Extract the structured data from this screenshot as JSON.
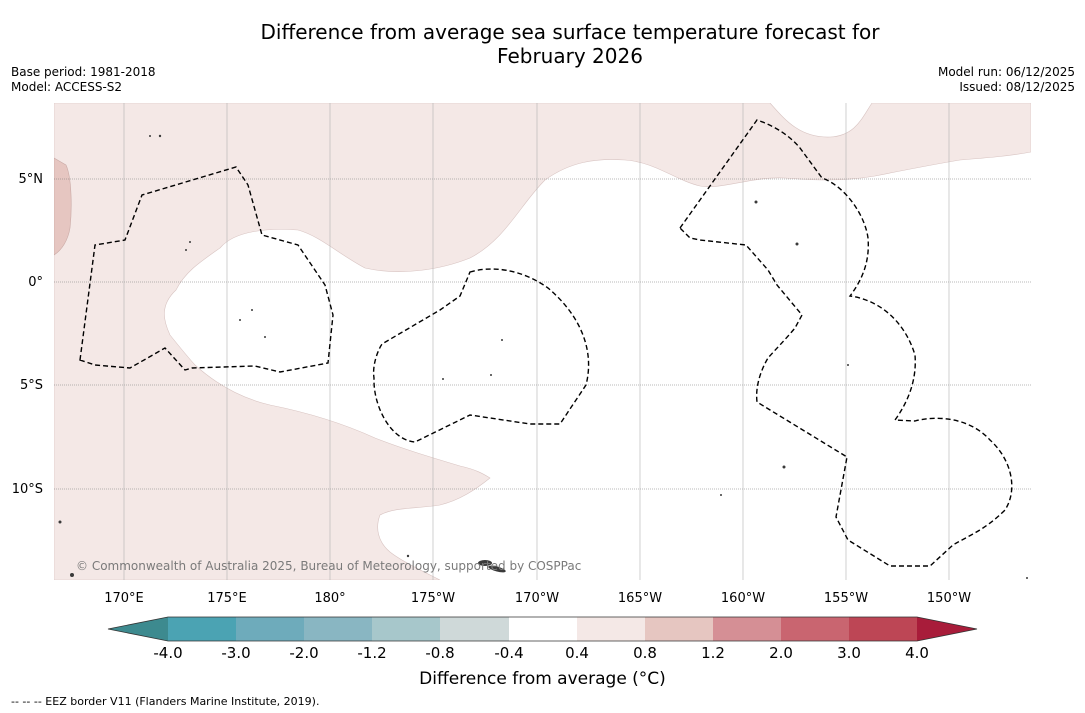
{
  "title": {
    "line1": "Difference from average sea surface temperature forecast for",
    "line2": "February 2026"
  },
  "meta_left": {
    "base_period": "Base period: 1981-2018",
    "model": "Model: ACCESS-S2"
  },
  "meta_right": {
    "model_run": "Model run: 06/12/2025",
    "issued": "Issued: 08/12/2025"
  },
  "map": {
    "lat_labels": [
      "5°N",
      "0°",
      "5°S",
      "10°S"
    ],
    "lon_labels": [
      "170°E",
      "175°E",
      "180°",
      "175°W",
      "170°W",
      "165°W",
      "160°W",
      "155°W",
      "150°W"
    ],
    "copyright": "© Commonwealth of Australia 2025, Bureau of Meteorology, supported by COSPPac",
    "colors": {
      "anomaly_0_4_to_0_8": "#f4e8e6",
      "anomaly_0_8_to_1_2": "#e6c6c1",
      "neutral": "#ffffff",
      "eez_border": "#000000"
    }
  },
  "colorbar": {
    "labels": [
      "-4.0",
      "-3.0",
      "-2.0",
      "-1.2",
      "-0.8",
      "-0.4",
      "0.4",
      "0.8",
      "1.2",
      "2.0",
      "3.0",
      "4.0"
    ],
    "colors": [
      "#3d8a8f",
      "#4ba3b3",
      "#6eabbb",
      "#89b6c2",
      "#a7c7cb",
      "#cfd9d9",
      "#ffffff",
      "#f4e8e6",
      "#e6c6c1",
      "#d58f95",
      "#c96570",
      "#bd4655",
      "#a81c3a"
    ],
    "title": "Difference from average (°C)"
  },
  "footer": "-- -- -- EEZ border V11 (Flanders Marine Institute, 2019)."
}
